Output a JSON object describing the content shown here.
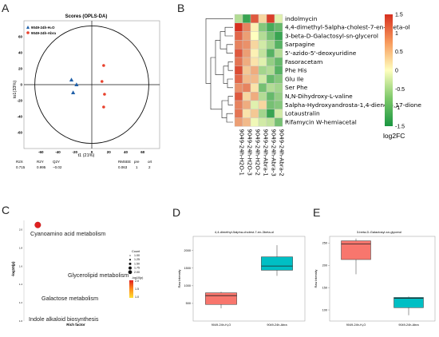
{
  "panels": {
    "A": {
      "letter": "A",
      "chart_data": {
        "type": "scatter",
        "title": "Scores (OPLS-DA)",
        "xlabel": "t1 (21%)",
        "ylabel": "to1(33%)",
        "xlim": [
          -80,
          80
        ],
        "ylim": [
          -80,
          80
        ],
        "xticks": [
          -60,
          -40,
          -20,
          0,
          20,
          40,
          60
        ],
        "yticks": [
          -60,
          -40,
          -20,
          0,
          20,
          40,
          60
        ],
        "legend_position": "top-left",
        "series": [
          {
            "name": "9049-24h-H₂O",
            "color": "#1f5fa8",
            "marker": "triangle",
            "points": [
              [
                -24,
                6
              ],
              [
                -18,
                0
              ],
              [
                -22,
                -10
              ]
            ]
          },
          {
            "name": "9049-24h-Abra",
            "color": "#e8412c",
            "marker": "circle",
            "points": [
              [
                14,
                24
              ],
              [
                12,
                4
              ],
              [
                15,
                -12
              ],
              [
                14,
                -28
              ]
            ]
          }
        ],
        "stats": {
          "headers": [
            "R2X",
            "R2Y",
            "Q2Y",
            "RMSEE",
            "pre",
            "ort"
          ],
          "values": [
            "0.715",
            "0.995",
            "−0.02",
            "0.063",
            "1",
            "2"
          ]
        }
      }
    },
    "B": {
      "letter": "B",
      "chart_data": {
        "type": "heatmap",
        "rows": [
          "indolmycin",
          "4,4-dimethyl-5alpha-cholest-7-en-3beta-ol",
          "3-beta-D-Galactosyl-sn-glycerol",
          "Sarpagine",
          "5'-azido-5'-deoxyuridine",
          "Fasoracetam",
          "Phe His",
          "Glu Ile",
          "Ser Phe",
          "N,N-Dihydroxy-L-valine",
          "5alpha-Hydroxyandrosta-1,4-diene-3,17-dione",
          "Lotaustralin",
          "Rifamycin W-hemiacetal"
        ],
        "columns": [
          "9049-24h-H2O-1",
          "9049-24h-H2O-3",
          "9049-24h-H2O-2",
          "9049-24h-Abra-1",
          "9049-24h-Abra-3",
          "9049-24h-Abra-2"
        ],
        "values": [
          [
            -0.5,
            -1.3,
            1.2,
            0.3,
            1.4,
            -0.2
          ],
          [
            1.5,
            0.9,
            0.1,
            -0.8,
            -1.2,
            -1.0
          ],
          [
            1.1,
            0.7,
            0.0,
            -0.5,
            -0.9,
            -1.3
          ],
          [
            0.9,
            0.8,
            0.3,
            -0.3,
            -0.6,
            -1.1
          ],
          [
            1.2,
            0.7,
            0.1,
            -0.4,
            -1.1,
            -0.5
          ],
          [
            1.0,
            0.6,
            0.2,
            -0.2,
            -0.7,
            -1.0
          ],
          [
            1.3,
            0.4,
            0.6,
            -0.6,
            -0.5,
            -1.1
          ],
          [
            1.1,
            0.5,
            0.5,
            -0.3,
            -1.0,
            -0.8
          ],
          [
            0.8,
            0.9,
            0.2,
            -0.9,
            -0.5,
            -0.6
          ],
          [
            1.2,
            0.3,
            0.6,
            -0.5,
            -1.0,
            -0.7
          ],
          [
            0.9,
            0.6,
            -0.2,
            0.3,
            -0.9,
            -0.8
          ],
          [
            1.0,
            0.2,
            0.4,
            -0.6,
            -1.3,
            -0.3
          ],
          [
            0.7,
            0.5,
            -0.1,
            -0.3,
            -0.4,
            -0.9
          ]
        ],
        "color_scale": {
          "min": -1.5,
          "max": 1.5,
          "low": "#1a9641",
          "mid": "#ffffbf",
          "high": "#d7301f",
          "ticks": [
            "1.5",
            "1",
            "0.5",
            "0",
            "-0.5",
            "-1",
            "-1.5"
          ],
          "label": "log2FC"
        }
      }
    },
    "C": {
      "letter": "C",
      "chart_data": {
        "type": "scatter",
        "xlabel": "Rich factor",
        "ylabel": "-log10(p)",
        "yticks": [
          "2.0",
          "1.8",
          "1.6",
          "1.4",
          "1.2",
          "1.0"
        ],
        "ylim": [
          1.0,
          2.1
        ],
        "xlim": [
          0,
          1.2
        ],
        "points": [
          {
            "label": "Cyanoamino acid metabolism",
            "x": 0.16,
            "y": 2.05,
            "count": 2,
            "color": "#e02020"
          },
          {
            "label": "Glycerolipid metabolism",
            "x": 1.0,
            "y": 1.48,
            "count": 1,
            "color": "#ffffff"
          },
          {
            "label": "Galactose metabolism",
            "x": 0.3,
            "y": 1.3,
            "count": 1,
            "color": "#ffffff"
          },
          {
            "label": "Indole alkaloid biosynthesis",
            "x": 0.08,
            "y": 1.07,
            "count": 1,
            "color": "#ffffff"
          }
        ],
        "legend_count": {
          "title": "Count",
          "items": [
            "1.00",
            "1.25",
            "1.50",
            "1.75",
            "2.00"
          ]
        },
        "legend_color": {
          "title": "-log10(p)",
          "ticks": [
            "2.0",
            "1.5",
            "1.0"
          ]
        }
      }
    },
    "D": {
      "letter": "D",
      "chart_data": {
        "type": "box",
        "title": "4,4-dimethyl-5alpha-cholest-7-en-3beta-ol",
        "ylabel": "Raw Intensity",
        "ylim": [
          0,
          2400
        ],
        "yticks": [
          500,
          1000,
          1500,
          2000
        ],
        "categories": [
          "9049-24h-H₂O",
          "9049-24h-Abra"
        ],
        "boxes": [
          {
            "min": 360,
            "q1": 470,
            "median": 720,
            "q3": 800,
            "max": 830,
            "color": "#f8766d"
          },
          {
            "min": 1280,
            "q1": 1440,
            "median": 1560,
            "q3": 1820,
            "max": 2150,
            "color": "#00bfc4"
          }
        ]
      }
    },
    "E": {
      "letter": "E",
      "chart_data": {
        "type": "box",
        "title": "3-beta-D-Galactosyl-sn-glycerol",
        "ylabel": "Raw Intensity",
        "ylim": [
          75,
          265
        ],
        "yticks": [
          100,
          150,
          200,
          250
        ],
        "categories": [
          "9049-24h-H₂O",
          "9049-24h-Abra"
        ],
        "boxes": [
          {
            "min": 180,
            "q1": 213,
            "median": 248,
            "q3": 255,
            "max": 260,
            "color": "#f8766d"
          },
          {
            "min": 88,
            "q1": 105,
            "median": 126,
            "q3": 128,
            "max": 130,
            "color": "#00bfc4"
          }
        ]
      }
    }
  }
}
